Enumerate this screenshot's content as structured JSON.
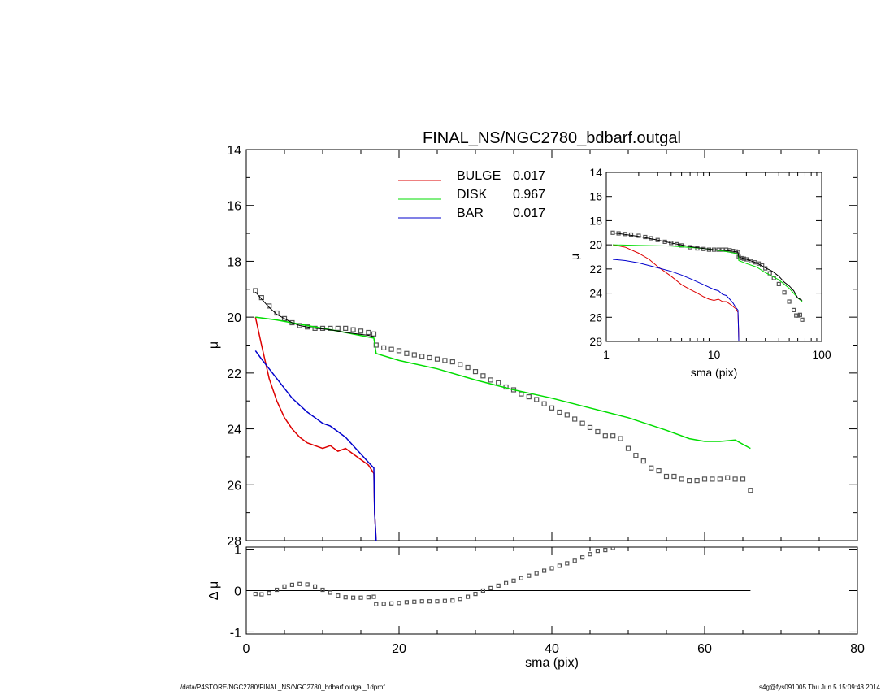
{
  "title": "FINAL_NS/NGC2780_bdbarf.outgal",
  "footer": {
    "left": "/data/P4STORE/NGC2780/FINAL_NS/NGC2780_bdbarf.outgal_1dprof",
    "right": "s4g@fys091005  Thu Jun  5 15:09:43 2014"
  },
  "colors": {
    "bulge": "#dd0000",
    "disk": "#00dd00",
    "bar": "#0000cc",
    "data": "#555555",
    "model": "#000000"
  },
  "legend": [
    {
      "key": "bulge",
      "name": "BULGE",
      "value": "0.017"
    },
    {
      "key": "disk",
      "name": "DISK",
      "value": "0.967"
    },
    {
      "key": "bar",
      "name": "BAR",
      "value": "0.017"
    }
  ],
  "chart_data": [
    {
      "id": "main",
      "type": "line",
      "xlabel": "",
      "ylabel": "μ",
      "xlim": [
        0,
        80
      ],
      "ylim": [
        14,
        28
      ],
      "y_inverted": true,
      "yticks": [
        "14",
        "16",
        "18",
        "20",
        "22",
        "24",
        "26",
        "28"
      ],
      "legend_position": "top-center",
      "series": [
        {
          "name": "BULGE",
          "key": "bulge",
          "x": [
            1.2,
            2,
            3,
            4,
            5,
            6,
            7,
            8,
            9,
            10,
            11,
            12,
            13,
            14,
            15,
            16,
            16.7,
            16.8,
            17
          ],
          "y": [
            20.0,
            21.0,
            22.2,
            23.0,
            23.6,
            24.0,
            24.3,
            24.5,
            24.6,
            24.7,
            24.6,
            24.8,
            24.7,
            24.9,
            25.1,
            25.3,
            25.6,
            27.0,
            28.0
          ]
        },
        {
          "name": "DISK",
          "key": "disk",
          "x": [
            1.2,
            4,
            8,
            12,
            16.7,
            17,
            20,
            25,
            30,
            35,
            40,
            45,
            50,
            55,
            58,
            60,
            62,
            64,
            65,
            66
          ],
          "y": [
            20.0,
            20.1,
            20.3,
            20.5,
            20.75,
            21.3,
            21.55,
            21.85,
            22.25,
            22.6,
            22.9,
            23.25,
            23.6,
            24.05,
            24.35,
            24.45,
            24.45,
            24.4,
            24.55,
            24.7
          ]
        },
        {
          "name": "BAR",
          "key": "bar",
          "x": [
            1.2,
            2,
            4,
            6,
            8,
            9,
            10,
            11,
            12,
            13,
            14,
            15,
            16,
            16.7,
            16.8,
            17
          ],
          "y": [
            21.2,
            21.5,
            22.2,
            22.9,
            23.4,
            23.6,
            23.8,
            23.9,
            24.1,
            24.3,
            24.6,
            24.9,
            25.2,
            25.4,
            27.0,
            28.0
          ]
        },
        {
          "name": "",
          "key": "data",
          "x": [
            1.2,
            2,
            3,
            4,
            5,
            6,
            7,
            8,
            9,
            10,
            11,
            12,
            13,
            14,
            15,
            16,
            16.7,
            17,
            18,
            19,
            20,
            21,
            22,
            23,
            24,
            25,
            26,
            27,
            28,
            29,
            30,
            31,
            32,
            33,
            34,
            35,
            36,
            37,
            38,
            39,
            40,
            41,
            42,
            43,
            44,
            45,
            46,
            47,
            48,
            49,
            50,
            51,
            52,
            53,
            54,
            55,
            56,
            57,
            58,
            59,
            60,
            61,
            62,
            63,
            64,
            65,
            66
          ],
          "y": [
            19.05,
            19.3,
            19.6,
            19.85,
            20.05,
            20.2,
            20.3,
            20.35,
            20.4,
            20.4,
            20.4,
            20.4,
            20.4,
            20.45,
            20.5,
            20.55,
            20.6,
            21.0,
            21.1,
            21.15,
            21.2,
            21.3,
            21.35,
            21.4,
            21.45,
            21.5,
            21.55,
            21.6,
            21.7,
            21.8,
            21.95,
            22.1,
            22.25,
            22.35,
            22.5,
            22.6,
            22.75,
            22.85,
            22.95,
            23.1,
            23.25,
            23.4,
            23.5,
            23.65,
            23.8,
            23.95,
            24.1,
            24.25,
            24.25,
            24.35,
            24.7,
            24.95,
            25.15,
            25.4,
            25.5,
            25.7,
            25.7,
            25.8,
            25.85,
            25.85,
            25.8,
            25.8,
            25.8,
            25.75,
            25.8,
            25.8,
            26.2
          ]
        },
        {
          "name": "",
          "key": "model",
          "x": [
            1.2,
            2,
            3,
            4,
            5,
            6,
            7,
            8,
            9,
            10,
            11,
            12,
            13,
            14,
            15,
            16,
            16.7
          ],
          "y": [
            19.1,
            19.35,
            19.65,
            19.9,
            20.05,
            20.2,
            20.3,
            20.35,
            20.4,
            20.42,
            20.45,
            20.5,
            20.55,
            20.58,
            20.62,
            20.65,
            20.7
          ]
        }
      ]
    },
    {
      "id": "residual",
      "type": "scatter",
      "xlabel": "sma (pix)",
      "ylabel": "Δ μ",
      "xlim": [
        0,
        80
      ],
      "ylim": [
        -1.05,
        1.05
      ],
      "xticks": [
        "0",
        "20",
        "40",
        "60",
        "80"
      ],
      "yticks": [
        "-1",
        "0",
        "1"
      ],
      "zero_line_x": [
        1,
        66
      ],
      "series": [
        {
          "name": "",
          "key": "data",
          "x": [
            1.2,
            2,
            3,
            4,
            5,
            6,
            7,
            8,
            9,
            10,
            11,
            12,
            13,
            14,
            15,
            16,
            16.7,
            17,
            18,
            19,
            20,
            21,
            22,
            23,
            24,
            25,
            26,
            27,
            28,
            29,
            30,
            31,
            32,
            33,
            34,
            35,
            36,
            37,
            38,
            39,
            40,
            41,
            42,
            43,
            44,
            45,
            46,
            47,
            48
          ],
          "y": [
            -0.08,
            -0.09,
            -0.06,
            0.02,
            0.1,
            0.14,
            0.16,
            0.15,
            0.1,
            0.02,
            -0.05,
            -0.12,
            -0.16,
            -0.17,
            -0.17,
            -0.16,
            -0.15,
            -0.33,
            -0.32,
            -0.31,
            -0.3,
            -0.28,
            -0.27,
            -0.26,
            -0.26,
            -0.26,
            -0.25,
            -0.24,
            -0.2,
            -0.15,
            -0.08,
            0.0,
            0.06,
            0.12,
            0.18,
            0.24,
            0.3,
            0.36,
            0.42,
            0.48,
            0.54,
            0.6,
            0.66,
            0.72,
            0.8,
            0.88,
            0.96,
            0.98,
            1.03
          ]
        }
      ]
    },
    {
      "id": "inset",
      "type": "line",
      "xlabel": "sma (pix)",
      "ylabel": "μ",
      "xscale": "log",
      "xlim": [
        1,
        100
      ],
      "ylim": [
        14,
        28
      ],
      "y_inverted": true,
      "xticks": [
        "1",
        "10",
        "100"
      ],
      "yticks": [
        "14",
        "16",
        "18",
        "20",
        "22",
        "24",
        "26",
        "28"
      ],
      "series": [
        {
          "name": "BULGE",
          "key": "bulge",
          "x": [
            1.15,
            1.5,
            2,
            2.5,
            3,
            4,
            5,
            6,
            7,
            8,
            9,
            10,
            11,
            12,
            13,
            14,
            15,
            16,
            16.7,
            16.9,
            17
          ],
          "y": [
            20.0,
            20.2,
            20.7,
            21.2,
            21.8,
            22.6,
            23.3,
            23.7,
            24.0,
            24.3,
            24.5,
            24.6,
            24.5,
            24.7,
            24.7,
            24.9,
            25.1,
            25.3,
            25.6,
            27.0,
            28.0
          ]
        },
        {
          "name": "DISK",
          "key": "disk",
          "x": [
            1.15,
            2,
            4,
            8,
            12,
            16.7,
            17,
            20,
            25,
            30,
            40,
            50,
            60,
            66
          ],
          "y": [
            20.0,
            20.05,
            20.1,
            20.3,
            20.5,
            20.75,
            21.3,
            21.55,
            21.85,
            22.3,
            22.9,
            23.6,
            24.4,
            24.7
          ]
        },
        {
          "name": "BAR",
          "key": "bar",
          "x": [
            1.15,
            1.5,
            2,
            3,
            4,
            5,
            6,
            8,
            10,
            11,
            12,
            13,
            14,
            15,
            16,
            16.7,
            16.9,
            17
          ],
          "y": [
            21.2,
            21.3,
            21.5,
            21.9,
            22.2,
            22.5,
            22.8,
            23.3,
            23.7,
            23.8,
            24.1,
            24.2,
            24.5,
            24.8,
            25.2,
            25.4,
            27.0,
            28.0
          ]
        },
        {
          "name": "",
          "key": "data",
          "x": [
            1.15,
            1.3,
            1.5,
            1.7,
            2,
            2.3,
            2.6,
            3,
            3.5,
            4,
            4.5,
            5,
            6,
            7,
            8,
            9,
            10,
            11,
            12,
            13,
            14,
            15,
            16,
            16.7,
            17,
            18,
            19,
            20,
            22,
            24,
            26,
            28,
            30,
            33,
            36,
            40,
            45,
            50,
            55,
            58,
            60,
            63,
            66
          ],
          "y": [
            19.0,
            19.05,
            19.1,
            19.15,
            19.25,
            19.35,
            19.45,
            19.6,
            19.75,
            19.85,
            19.95,
            20.05,
            20.2,
            20.3,
            20.35,
            20.4,
            20.4,
            20.4,
            20.4,
            20.4,
            20.45,
            20.5,
            20.55,
            20.6,
            21.0,
            21.1,
            21.15,
            21.2,
            21.35,
            21.45,
            21.55,
            21.7,
            21.95,
            22.35,
            22.75,
            23.25,
            23.95,
            24.7,
            25.4,
            25.85,
            25.85,
            25.8,
            26.2
          ]
        },
        {
          "name": "",
          "key": "model",
          "x": [
            1.15,
            2,
            3,
            4,
            6,
            8,
            10,
            12,
            14,
            16.7,
            17,
            20,
            25,
            30,
            35,
            40,
            45,
            50,
            55,
            60,
            63,
            66
          ],
          "y": [
            19.0,
            19.3,
            19.6,
            19.85,
            20.15,
            20.3,
            20.4,
            20.45,
            20.5,
            20.6,
            21.0,
            21.2,
            21.5,
            21.9,
            22.2,
            22.6,
            23.1,
            23.4,
            23.8,
            24.4,
            24.5,
            24.6
          ]
        }
      ]
    }
  ]
}
